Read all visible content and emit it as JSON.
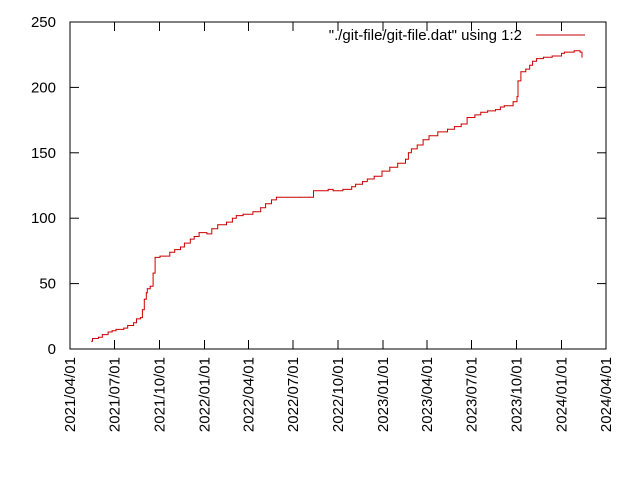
{
  "chart_data": {
    "type": "line",
    "legend": {
      "label": "\"./git-file/git-file.dat\" using 1:2",
      "position": "top-right",
      "color": "#cc0000"
    },
    "x_axis": {
      "type": "date",
      "range": [
        "2021-04-01",
        "2024-04-01"
      ],
      "tick_labels": [
        "2021/04/01",
        "2021/07/01",
        "2021/10/01",
        "2022/01/01",
        "2022/04/01",
        "2022/07/01",
        "2022/10/01",
        "2023/01/01",
        "2023/04/01",
        "2023/07/01",
        "2023/10/01",
        "2024/01/01",
        "2024/04/01"
      ],
      "tick_dates": [
        "2021-04-01",
        "2021-07-01",
        "2021-10-01",
        "2022-01-01",
        "2022-04-01",
        "2022-07-01",
        "2022-10-01",
        "2023-01-01",
        "2023-04-01",
        "2023-07-01",
        "2023-10-01",
        "2024-01-01",
        "2024-04-01"
      ]
    },
    "y_axis": {
      "range": [
        0,
        250
      ],
      "ticks": [
        0,
        50,
        100,
        150,
        200,
        250
      ]
    },
    "grid": false,
    "series": [
      {
        "color": "#cc0000",
        "points": [
          [
            "2021-05-15",
            6
          ],
          [
            "2021-05-17",
            8
          ],
          [
            "2021-05-29",
            9
          ],
          [
            "2021-06-06",
            11
          ],
          [
            "2021-06-18",
            13
          ],
          [
            "2021-06-26",
            14
          ],
          [
            "2021-07-04",
            15
          ],
          [
            "2021-07-20",
            16
          ],
          [
            "2021-07-28",
            18
          ],
          [
            "2021-08-09",
            20
          ],
          [
            "2021-08-15",
            23
          ],
          [
            "2021-08-23",
            24
          ],
          [
            "2021-08-27",
            30
          ],
          [
            "2021-08-31",
            38
          ],
          [
            "2021-09-04",
            43
          ],
          [
            "2021-09-06",
            46
          ],
          [
            "2021-09-12",
            48
          ],
          [
            "2021-09-18",
            58
          ],
          [
            "2021-09-22",
            70
          ],
          [
            "2021-10-02",
            71
          ],
          [
            "2021-10-22",
            74
          ],
          [
            "2021-11-01",
            76
          ],
          [
            "2021-11-13",
            78
          ],
          [
            "2021-11-21",
            81
          ],
          [
            "2021-12-03",
            84
          ],
          [
            "2021-12-11",
            86
          ],
          [
            "2021-12-21",
            89
          ],
          [
            "2022-01-06",
            88
          ],
          [
            "2022-01-16",
            92
          ],
          [
            "2022-01-28",
            95
          ],
          [
            "2022-02-15",
            97
          ],
          [
            "2022-02-27",
            100
          ],
          [
            "2022-03-07",
            102
          ],
          [
            "2022-03-21",
            103
          ],
          [
            "2022-04-10",
            105
          ],
          [
            "2022-04-26",
            108
          ],
          [
            "2022-05-06",
            111
          ],
          [
            "2022-05-18",
            114
          ],
          [
            "2022-05-28",
            116
          ],
          [
            "2022-07-15",
            116
          ],
          [
            "2022-08-04",
            116
          ],
          [
            "2022-08-12",
            121
          ],
          [
            "2022-09-11",
            122
          ],
          [
            "2022-09-21",
            121
          ],
          [
            "2022-10-11",
            122
          ],
          [
            "2022-10-29",
            124
          ],
          [
            "2022-11-06",
            126
          ],
          [
            "2022-11-20",
            128
          ],
          [
            "2022-11-30",
            130
          ],
          [
            "2022-12-14",
            132
          ],
          [
            "2022-12-30",
            136
          ],
          [
            "2023-01-15",
            139
          ],
          [
            "2023-01-31",
            142
          ],
          [
            "2023-02-16",
            145
          ],
          [
            "2023-02-22",
            150
          ],
          [
            "2023-02-28",
            153
          ],
          [
            "2023-03-12",
            156
          ],
          [
            "2023-03-24",
            160
          ],
          [
            "2023-04-05",
            163
          ],
          [
            "2023-04-23",
            166
          ],
          [
            "2023-05-13",
            168
          ],
          [
            "2023-05-27",
            170
          ],
          [
            "2023-06-10",
            172
          ],
          [
            "2023-06-22",
            177
          ],
          [
            "2023-07-08",
            179
          ],
          [
            "2023-07-20",
            181
          ],
          [
            "2023-08-03",
            182
          ],
          [
            "2023-08-19",
            183
          ],
          [
            "2023-08-29",
            185
          ],
          [
            "2023-09-06",
            186
          ],
          [
            "2023-09-24",
            189
          ],
          [
            "2023-10-02",
            193
          ],
          [
            "2023-10-04",
            205
          ],
          [
            "2023-10-10",
            212
          ],
          [
            "2023-10-20",
            214
          ],
          [
            "2023-10-28",
            217
          ],
          [
            "2023-11-03",
            220
          ],
          [
            "2023-11-11",
            222
          ],
          [
            "2023-11-25",
            223
          ],
          [
            "2023-12-13",
            224
          ],
          [
            "2024-01-01",
            226
          ],
          [
            "2024-01-07",
            227
          ],
          [
            "2024-01-27",
            228
          ],
          [
            "2024-02-08",
            227
          ],
          [
            "2024-02-12",
            223
          ]
        ]
      }
    ]
  }
}
